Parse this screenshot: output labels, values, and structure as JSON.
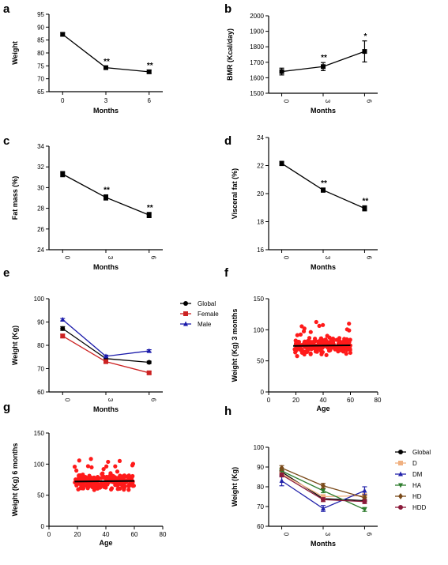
{
  "chart_data": [
    {
      "id": "a",
      "panel_label": "a",
      "type": "line",
      "x_cat": [
        "0",
        "3",
        "6"
      ],
      "xlabel": "Months",
      "ylabel": "Weight",
      "ylabel_rotated": true,
      "ylim": [
        65,
        95
      ],
      "yticks": [
        "65",
        "70",
        "75",
        "80",
        "85",
        "90",
        "95"
      ],
      "xticks_rotated": false,
      "series": [
        {
          "name": "",
          "color": "#000000",
          "marker": "square",
          "values": [
            87.2,
            74.3,
            72.7
          ],
          "err": [
            0.6,
            0.5,
            0.6
          ],
          "annot": [
            "",
            "**",
            "**"
          ]
        }
      ]
    },
    {
      "id": "b",
      "panel_label": "b",
      "type": "line",
      "x_cat": [
        "0",
        "3",
        "6"
      ],
      "xlabel": "Months",
      "ylabel": "BMR (Kcal/day)",
      "ylabel_rotated": true,
      "ylim": [
        1500,
        2000
      ],
      "yticks": [
        "1500",
        "1600",
        "1700",
        "1800",
        "1900",
        "2000"
      ],
      "xticks_rotated": true,
      "series": [
        {
          "name": "",
          "color": "#000000",
          "marker": "square",
          "values": [
            1640,
            1672,
            1770
          ],
          "err": [
            22,
            26,
            68
          ],
          "annot": [
            "",
            "**",
            "*"
          ]
        }
      ]
    },
    {
      "id": "c",
      "panel_label": "c",
      "type": "line",
      "x_cat": [
        "0",
        "3",
        "6"
      ],
      "xlabel": "Months",
      "ylabel": "Fat mass (%)",
      "ylabel_rotated": true,
      "ylim": [
        24,
        34
      ],
      "yticks": [
        "24",
        "26",
        "28",
        "30",
        "32",
        "34"
      ],
      "xticks_rotated": true,
      "series": [
        {
          "name": "",
          "color": "#000000",
          "marker": "square",
          "values": [
            31.3,
            29.05,
            27.35
          ],
          "err": [
            0.25,
            0.25,
            0.25
          ],
          "annot": [
            "",
            "**",
            "**"
          ]
        }
      ]
    },
    {
      "id": "d",
      "panel_label": "d",
      "type": "line",
      "x_cat": [
        "0",
        "3",
        "6"
      ],
      "xlabel": "Months",
      "ylabel": "Visceral fat (%)",
      "ylabel_rotated": true,
      "ylim": [
        16,
        24
      ],
      "yticks": [
        "16",
        "18",
        "20",
        "22",
        "24"
      ],
      "xticks_rotated": true,
      "series": [
        {
          "name": "",
          "color": "#000000",
          "marker": "square",
          "values": [
            22.15,
            20.25,
            18.95
          ],
          "err": [
            0.15,
            0.15,
            0.18
          ],
          "annot": [
            "",
            "**",
            "**"
          ]
        }
      ]
    },
    {
      "id": "e",
      "panel_label": "e",
      "type": "line",
      "x_cat": [
        "0",
        "3",
        "6"
      ],
      "xlabel": "Months",
      "ylabel": "Weight (Kg)",
      "ylabel_rotated": true,
      "ylim": [
        60,
        100
      ],
      "yticks": [
        "60",
        "70",
        "80",
        "90",
        "100"
      ],
      "xticks_rotated": true,
      "legend": "right",
      "series": [
        {
          "name": "Global",
          "color": "#000000",
          "marker": "circle",
          "values": [
            87.2,
            74.3,
            72.7
          ],
          "err": [
            0.8,
            0.5,
            0.5
          ],
          "annot": [
            "",
            "",
            ""
          ]
        },
        {
          "name": "Female",
          "color": "#cc2222",
          "marker": "square",
          "values": [
            84.0,
            73.0,
            68.2
          ],
          "err": [
            0.8,
            0.5,
            0.5
          ],
          "annot": [
            "",
            "",
            ""
          ]
        },
        {
          "name": "Male",
          "color": "#1a1aaa",
          "marker": "triangle",
          "values": [
            91.0,
            75.3,
            77.6
          ],
          "err": [
            0.5,
            0.5,
            0.5
          ],
          "annot": [
            "",
            "",
            ""
          ]
        }
      ]
    },
    {
      "id": "f",
      "panel_label": "f",
      "type": "scatter",
      "xlabel": "Age",
      "ylabel": "Weight (Kg) 3 months",
      "ylabel_rotated": true,
      "xlim": [
        0,
        80
      ],
      "xticks": [
        "0",
        "20",
        "40",
        "60",
        "80"
      ],
      "ylim": [
        0,
        150
      ],
      "yticks": [
        "0",
        "50",
        "100",
        "150"
      ],
      "color": "#ff1a1a",
      "x_range": [
        18,
        60
      ],
      "y_center": 74,
      "y_spread": 13,
      "n_points": 240,
      "seed": 11,
      "fit_line": {
        "x": [
          18,
          60
        ],
        "y": [
          74,
          75
        ]
      }
    },
    {
      "id": "g",
      "panel_label": "g",
      "type": "scatter",
      "xlabel": "Age",
      "ylabel": "Weight (Kg) 6 months",
      "ylabel_rotated": true,
      "xlim": [
        0,
        80
      ],
      "xticks": [
        "0",
        "20",
        "40",
        "60",
        "80"
      ],
      "ylim": [
        0,
        150
      ],
      "yticks": [
        "0",
        "50",
        "100",
        "150"
      ],
      "color": "#ff1a1a",
      "x_range": [
        18,
        60
      ],
      "y_center": 72,
      "y_spread": 12,
      "n_points": 240,
      "seed": 29,
      "fit_line": {
        "x": [
          18,
          60
        ],
        "y": [
          72,
          73
        ]
      }
    },
    {
      "id": "h",
      "panel_label": "h",
      "type": "line",
      "x_cat": [
        "0",
        "3",
        "6"
      ],
      "xlabel": "Months",
      "ylabel": "Weight (Kg)",
      "ylabel_rotated": true,
      "ylim": [
        60,
        100
      ],
      "yticks": [
        "60",
        "70",
        "80",
        "90",
        "100"
      ],
      "xticks_rotated": true,
      "legend": "right",
      "series": [
        {
          "name": "Global",
          "color": "#000000",
          "marker": "circle",
          "values": [
            87.5,
            74.0,
            73.0
          ],
          "err": [
            0.6,
            0.5,
            0.5
          ],
          "annot": [
            "",
            "",
            ""
          ]
        },
        {
          "name": "D",
          "color": "#f0b080",
          "marker": "square",
          "values": [
            86.5,
            75.0,
            75.5
          ],
          "err": [
            1.0,
            1.0,
            1.0
          ],
          "annot": [
            "",
            "",
            ""
          ]
        },
        {
          "name": "DM",
          "color": "#2222aa",
          "marker": "triangle",
          "values": [
            83.0,
            69.0,
            78.0
          ],
          "err": [
            2.5,
            1.5,
            2.0
          ],
          "annot": [
            "",
            "",
            ""
          ]
        },
        {
          "name": "HA",
          "color": "#2e7d2e",
          "marker": "triangle-down",
          "values": [
            88.0,
            78.0,
            68.5
          ],
          "err": [
            1.0,
            1.0,
            1.0
          ],
          "annot": [
            "",
            "",
            ""
          ]
        },
        {
          "name": "HD",
          "color": "#7a4a1a",
          "marker": "diamond",
          "values": [
            89.5,
            80.5,
            74.5
          ],
          "err": [
            1.2,
            1.2,
            1.2
          ],
          "annot": [
            "",
            "",
            ""
          ]
        },
        {
          "name": "HDD",
          "color": "#8b1a3a",
          "marker": "circle",
          "values": [
            86.0,
            73.5,
            72.5
          ],
          "err": [
            1.0,
            1.0,
            1.0
          ],
          "annot": [
            "",
            "",
            ""
          ]
        }
      ]
    }
  ]
}
